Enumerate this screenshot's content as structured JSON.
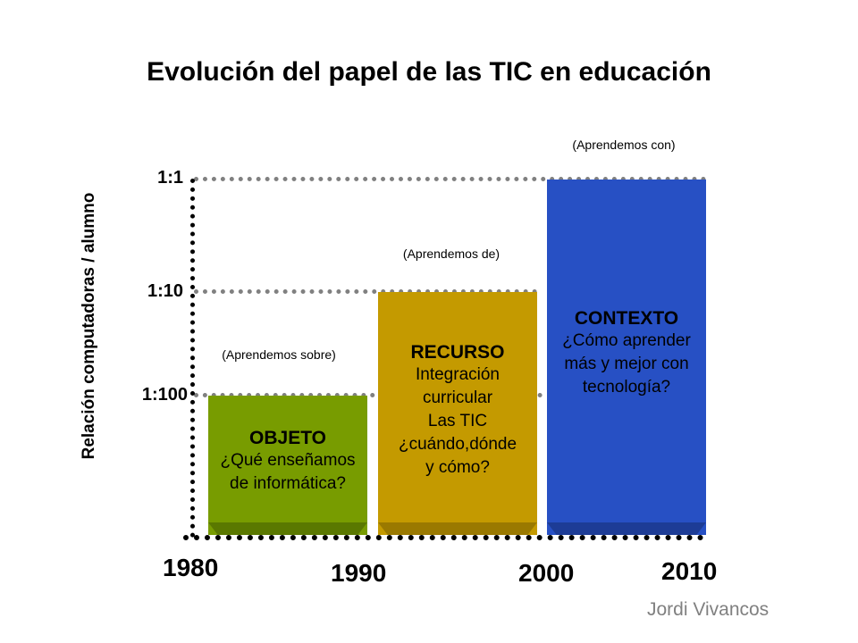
{
  "title": "Evolución del papel de las TIC en educación",
  "y_axis_label": "Relación computadoras / alumno",
  "y_ticks": [
    "1:1",
    "1:10",
    "1:100"
  ],
  "x_ticks": [
    "1980",
    "1990",
    "2000",
    "2010"
  ],
  "colors": {
    "objeto": "#789c00",
    "recurso": "#c49a00",
    "contexto": "#2750c4",
    "gridline": "#808080"
  },
  "stages": [
    {
      "note": "(Aprendemos sobre)",
      "title": "OBJETO",
      "lines": [
        "¿Qué enseñamos",
        "de informática?"
      ],
      "level": "1:100",
      "period": "1980-1990"
    },
    {
      "note": "(Aprendemos de)",
      "title": "RECURSO",
      "lines": [
        "Integración",
        "curricular",
        "Las TIC",
        "¿cuándo,dónde",
        "y cómo?"
      ],
      "level": "1:10",
      "period": "1990-2000"
    },
    {
      "note": "(Aprendemos con)",
      "title": "CONTEXTO",
      "lines": [
        "¿Cómo aprender",
        "más y mejor con",
        "tecnología?"
      ],
      "level": "1:1",
      "period": "2000-2010"
    }
  ],
  "author": "Jordi Vivancos"
}
